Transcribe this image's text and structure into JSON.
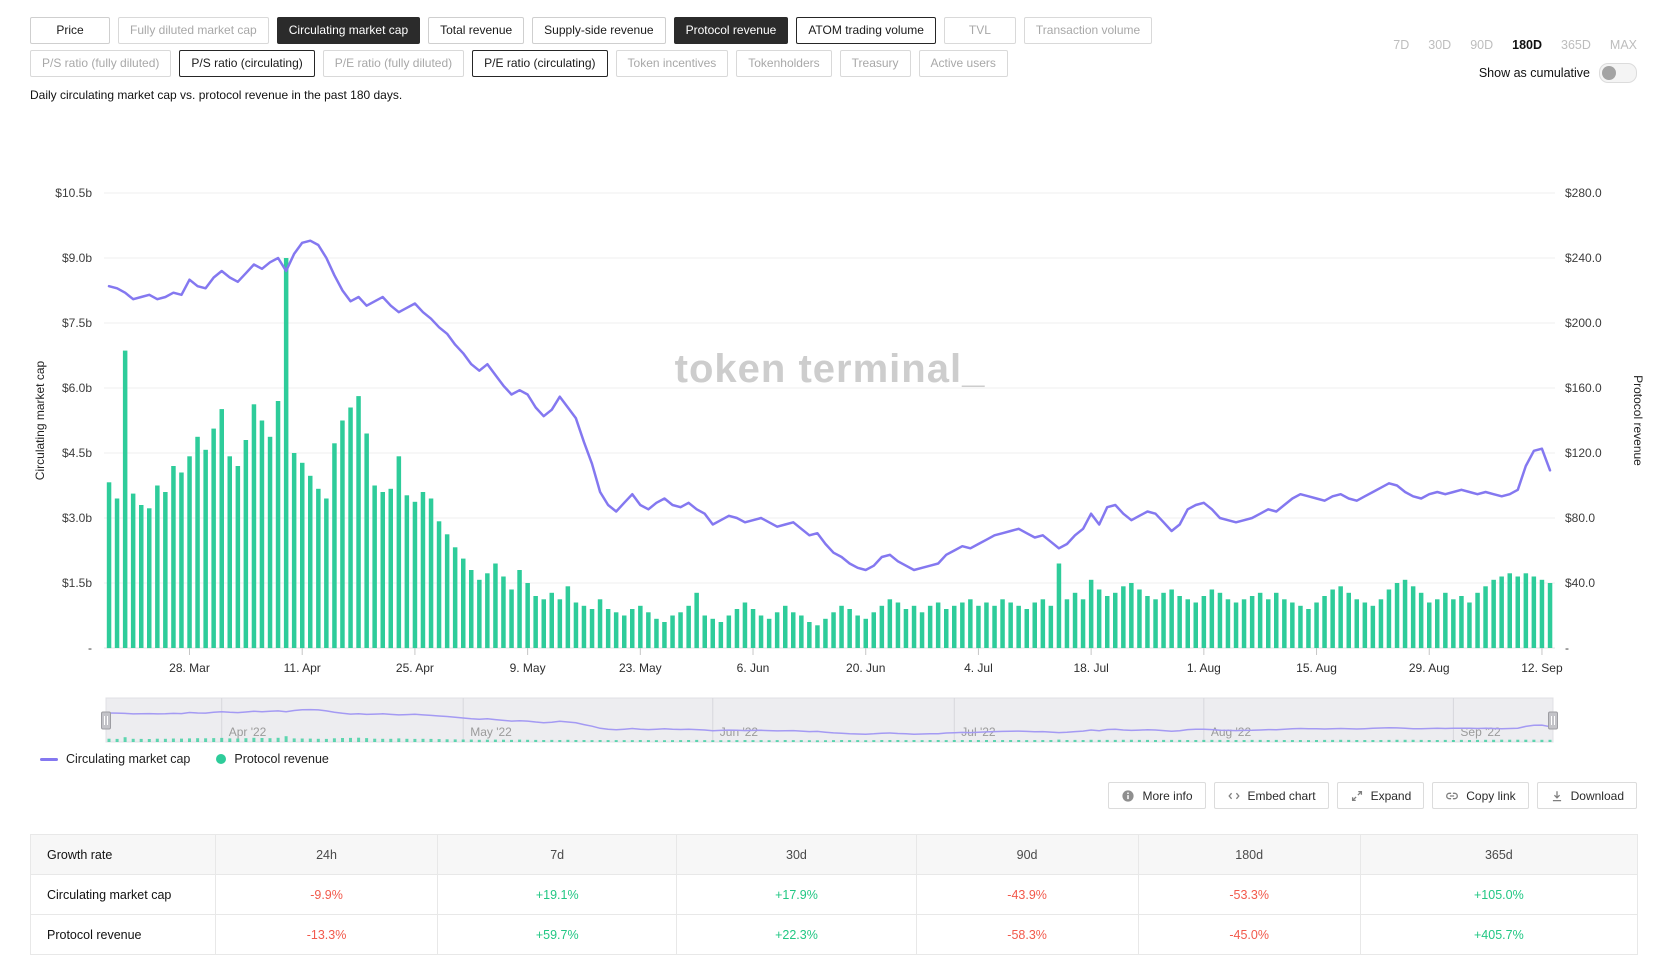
{
  "subtitle": "Daily circulating market cap vs. protocol revenue in the past 180 days.",
  "watermark": "token terminal_",
  "toolbar": {
    "rows": [
      [
        {
          "label": "Price",
          "state": "normal"
        },
        {
          "label": "Fully diluted market cap",
          "state": "muted"
        },
        {
          "label": "Circulating market cap",
          "state": "selected"
        },
        {
          "label": "Total revenue",
          "state": "normal"
        },
        {
          "label": "Supply-side revenue",
          "state": "normal"
        },
        {
          "label": "Protocol revenue",
          "state": "selected"
        },
        {
          "label": "ATOM trading volume",
          "state": "outlined"
        },
        {
          "label": "TVL",
          "state": "muted"
        },
        {
          "label": "Transaction volume",
          "state": "muted"
        }
      ],
      [
        {
          "label": "P/S ratio (fully diluted)",
          "state": "muted"
        },
        {
          "label": "P/S ratio (circulating)",
          "state": "outlined"
        },
        {
          "label": "P/E ratio (fully diluted)",
          "state": "muted"
        },
        {
          "label": "P/E ratio (circulating)",
          "state": "outlined"
        },
        {
          "label": "Token incentives",
          "state": "muted"
        },
        {
          "label": "Tokenholders",
          "state": "muted"
        },
        {
          "label": "Treasury",
          "state": "muted"
        },
        {
          "label": "Active users",
          "state": "muted"
        }
      ]
    ]
  },
  "controls": {
    "ranges": [
      {
        "label": "7D",
        "active": false
      },
      {
        "label": "30D",
        "active": false
      },
      {
        "label": "90D",
        "active": false
      },
      {
        "label": "180D",
        "active": true
      },
      {
        "label": "365D",
        "active": false
      },
      {
        "label": "MAX",
        "active": false
      }
    ],
    "cumulative_label": "Show as cumulative",
    "cumulative_on": false
  },
  "legend": [
    {
      "label": "Circulating market cap",
      "swatch": "line",
      "color": "#8478F0"
    },
    {
      "label": "Protocol revenue",
      "swatch": "dot",
      "color": "#2ECC9A"
    }
  ],
  "actions": [
    {
      "label": "More info",
      "icon": "info-icon"
    },
    {
      "label": "Embed chart",
      "icon": "embed-icon"
    },
    {
      "label": "Expand",
      "icon": "expand-icon"
    },
    {
      "label": "Copy link",
      "icon": "link-icon"
    },
    {
      "label": "Download",
      "icon": "download-icon"
    }
  ],
  "table": {
    "headers": [
      "Growth rate",
      "24h",
      "7d",
      "30d",
      "90d",
      "180d",
      "365d"
    ],
    "rows": [
      {
        "label": "Circulating market cap",
        "values": [
          "-9.9%",
          "+19.1%",
          "+17.9%",
          "-43.9%",
          "-53.3%",
          "+105.0%"
        ]
      },
      {
        "label": "Protocol revenue",
        "values": [
          "-13.3%",
          "+59.7%",
          "+22.3%",
          "-58.3%",
          "-45.0%",
          "+405.7%"
        ]
      }
    ]
  },
  "chart_data": {
    "type": "line+bar",
    "title": "Daily circulating market cap vs. protocol revenue in the past 180 days",
    "n_points": 180,
    "grid": true,
    "left_axis": {
      "title": "Circulating market cap",
      "unit": "USD billions",
      "min": 0,
      "max": 10.5,
      "tick_labels": [
        "$10.5b",
        "$9.0b",
        "$7.5b",
        "$6.0b",
        "$4.5b",
        "$3.0b",
        "$1.5b",
        "-"
      ],
      "tick_values": [
        10.5,
        9.0,
        7.5,
        6.0,
        4.5,
        3.0,
        1.5,
        0
      ]
    },
    "right_axis": {
      "title": "Protocol revenue",
      "unit": "USD",
      "min": 0,
      "max": 280,
      "tick_labels": [
        "$280.0",
        "$240.0",
        "$200.0",
        "$160.0",
        "$120.0",
        "$80.0",
        "$40.0",
        "-"
      ],
      "tick_values": [
        280,
        240,
        200,
        160,
        120,
        80,
        40,
        0
      ]
    },
    "x_ticks": [
      {
        "label": "28. Mar",
        "day": 10
      },
      {
        "label": "11. Apr",
        "day": 24
      },
      {
        "label": "25. Apr",
        "day": 38
      },
      {
        "label": "9. May",
        "day": 52
      },
      {
        "label": "23. May",
        "day": 66
      },
      {
        "label": "6. Jun",
        "day": 80
      },
      {
        "label": "20. Jun",
        "day": 94
      },
      {
        "label": "4. Jul",
        "day": 108
      },
      {
        "label": "18. Jul",
        "day": 122
      },
      {
        "label": "1. Aug",
        "day": 136
      },
      {
        "label": "15. Aug",
        "day": 150
      },
      {
        "label": "29. Aug",
        "day": 164
      },
      {
        "label": "12. Sep",
        "day": 178
      }
    ],
    "navigator_months": [
      {
        "label": "Apr '22",
        "day": 14
      },
      {
        "label": "May '22",
        "day": 44
      },
      {
        "label": "Jun '22",
        "day": 75
      },
      {
        "label": "Jul '22",
        "day": 105
      },
      {
        "label": "Aug '22",
        "day": 136
      },
      {
        "label": "Sep '22",
        "day": 167
      }
    ],
    "series": [
      {
        "name": "Circulating market cap",
        "type": "line",
        "axis": "left",
        "unit": "USD billions",
        "color": "#8478F0",
        "values": [
          8.35,
          8.3,
          8.2,
          8.05,
          8.1,
          8.15,
          8.05,
          8.1,
          8.2,
          8.15,
          8.5,
          8.35,
          8.3,
          8.55,
          8.7,
          8.55,
          8.45,
          8.65,
          8.85,
          8.75,
          8.9,
          9.0,
          8.7,
          9.1,
          9.35,
          9.4,
          9.3,
          9.0,
          8.6,
          8.25,
          8.0,
          8.1,
          7.9,
          8.0,
          8.1,
          7.9,
          7.75,
          7.85,
          7.95,
          7.75,
          7.6,
          7.4,
          7.25,
          7.0,
          6.8,
          6.55,
          6.4,
          6.55,
          6.3,
          6.05,
          5.85,
          5.95,
          5.85,
          5.55,
          5.35,
          5.5,
          5.8,
          5.55,
          5.3,
          4.75,
          4.25,
          3.6,
          3.3,
          3.15,
          3.35,
          3.55,
          3.3,
          3.2,
          3.35,
          3.45,
          3.3,
          3.25,
          3.35,
          3.2,
          3.1,
          2.85,
          2.95,
          3.05,
          3.0,
          2.9,
          2.95,
          3.0,
          2.9,
          2.8,
          2.85,
          2.9,
          2.75,
          2.6,
          2.65,
          2.4,
          2.2,
          2.1,
          1.95,
          1.85,
          1.8,
          1.9,
          2.1,
          2.15,
          2.0,
          1.9,
          1.8,
          1.85,
          1.9,
          1.95,
          2.15,
          2.25,
          2.35,
          2.3,
          2.4,
          2.5,
          2.6,
          2.65,
          2.7,
          2.75,
          2.65,
          2.55,
          2.6,
          2.45,
          2.3,
          2.4,
          2.6,
          2.75,
          3.1,
          2.85,
          3.25,
          3.3,
          3.1,
          2.95,
          3.05,
          3.15,
          3.1,
          2.9,
          2.7,
          2.85,
          3.2,
          3.3,
          3.35,
          3.2,
          3.0,
          2.95,
          2.9,
          2.95,
          3.0,
          3.1,
          3.2,
          3.15,
          3.3,
          3.45,
          3.55,
          3.5,
          3.45,
          3.4,
          3.5,
          3.55,
          3.45,
          3.4,
          3.5,
          3.6,
          3.7,
          3.8,
          3.75,
          3.6,
          3.5,
          3.45,
          3.55,
          3.6,
          3.55,
          3.6,
          3.65,
          3.6,
          3.55,
          3.6,
          3.55,
          3.5,
          3.55,
          3.65,
          4.2,
          4.55,
          4.6,
          4.1
        ]
      },
      {
        "name": "Protocol revenue",
        "type": "bar",
        "axis": "right",
        "unit": "USD",
        "color": "#2ECC9A",
        "values": [
          102,
          92,
          183,
          95,
          88,
          86,
          100,
          96,
          112,
          108,
          118,
          130,
          122,
          135,
          147,
          118,
          112,
          128,
          150,
          140,
          130,
          152,
          240,
          120,
          114,
          106,
          98,
          92,
          126,
          140,
          148,
          155,
          132,
          100,
          96,
          98,
          118,
          94,
          90,
          96,
          92,
          78,
          70,
          62,
          55,
          48,
          42,
          46,
          52,
          44,
          36,
          48,
          40,
          32,
          30,
          34,
          30,
          38,
          28,
          26,
          24,
          30,
          24,
          22,
          20,
          24,
          26,
          22,
          18,
          16,
          20,
          22,
          26,
          34,
          20,
          18,
          16,
          20,
          24,
          28,
          24,
          20,
          18,
          22,
          26,
          22,
          20,
          16,
          14,
          18,
          22,
          26,
          24,
          20,
          18,
          22,
          26,
          30,
          28,
          24,
          26,
          22,
          26,
          28,
          24,
          26,
          28,
          30,
          26,
          28,
          26,
          30,
          28,
          26,
          24,
          28,
          30,
          26,
          52,
          30,
          34,
          30,
          42,
          36,
          32,
          34,
          38,
          40,
          36,
          32,
          30,
          34,
          36,
          32,
          30,
          28,
          32,
          36,
          34,
          30,
          28,
          30,
          32,
          34,
          30,
          34,
          30,
          28,
          26,
          24,
          28,
          32,
          36,
          38,
          34,
          30,
          28,
          26,
          30,
          36,
          40,
          42,
          38,
          34,
          28,
          30,
          34,
          30,
          32,
          28,
          34,
          38,
          42,
          44,
          46,
          44,
          46,
          44,
          42,
          40
        ]
      }
    ]
  }
}
